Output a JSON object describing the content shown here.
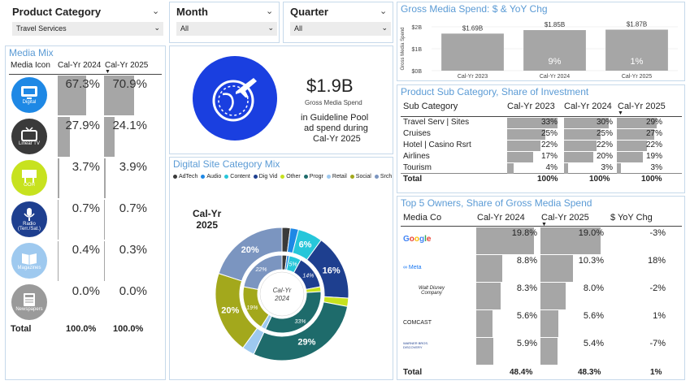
{
  "slicers": {
    "product_category": {
      "label": "Product Category",
      "value": "Travel Services"
    },
    "month": {
      "label": "Month",
      "value": "All"
    },
    "quarter": {
      "label": "Quarter",
      "value": "All"
    }
  },
  "media_mix": {
    "title": "Media Mix",
    "headers": {
      "icon": "Media Icon",
      "c1": "Cal-Yr 2024",
      "c2": "Cal-Yr 2025"
    },
    "rows": [
      {
        "name": "Digital",
        "icon": "monitor-icon",
        "v2024": "67.3%",
        "v2025": "70.9%",
        "n2024": 67.3,
        "n2025": 70.9,
        "color": "#1e88e5"
      },
      {
        "name": "Linear TV",
        "icon": "tv-icon",
        "v2024": "27.9%",
        "v2025": "24.1%",
        "n2024": 27.9,
        "n2025": 24.1,
        "color": "#3a3a3a"
      },
      {
        "name": "OOH",
        "icon": "billboard-icon",
        "v2024": "3.7%",
        "v2025": "3.9%",
        "n2024": 3.7,
        "n2025": 3.9,
        "color": "#c7e21f"
      },
      {
        "name": "Radio (Terr./Sat.)",
        "icon": "microphone-icon",
        "v2024": "0.7%",
        "v2025": "0.7%",
        "n2024": 0.7,
        "n2025": 0.7,
        "color": "#1e3f8f"
      },
      {
        "name": "Magazines",
        "icon": "book-icon",
        "v2024": "0.4%",
        "v2025": "0.3%",
        "n2024": 0.4,
        "n2025": 0.3,
        "color": "#9ec9ef"
      },
      {
        "name": "Newspapers",
        "icon": "newspaper-icon",
        "v2024": "0.0%",
        "v2025": "0.0%",
        "n2024": 0.0,
        "n2025": 0.0,
        "color": "#9a9a9a"
      }
    ],
    "total_label": "Total",
    "total_2024": "100.0%",
    "total_2025": "100.0%"
  },
  "kpi": {
    "value": "$1.9B",
    "sub": "Gross Media Spend",
    "line1": "in Guideline Pool",
    "line2": "ad spend during",
    "line3": "Cal-Yr 2025"
  },
  "digital_mix": {
    "title": "Digital Site Category Mix",
    "legend": [
      {
        "name": "AdTech",
        "color": "#3a3a3a"
      },
      {
        "name": "Audio",
        "color": "#1e88e5"
      },
      {
        "name": "Content",
        "color": "#26c6da"
      },
      {
        "name": "Dig Vid",
        "color": "#1e3f8f"
      },
      {
        "name": "Other",
        "color": "#c7e21f"
      },
      {
        "name": "Progr",
        "color": "#1e6b6b"
      },
      {
        "name": "Retail",
        "color": "#9ec9ef"
      },
      {
        "name": "Social",
        "color": "#a3a81c"
      },
      {
        "name": "Srch",
        "color": "#7b95c0"
      }
    ],
    "outer_label": "Cal-Yr",
    "outer_label2": "2025",
    "inner_label": "Cal-Yr",
    "inner_label2": "2024"
  },
  "chart_data": [
    {
      "type": "bar",
      "title": "Gross Media Spend: $ & YoY Chg",
      "categories": [
        "Cal-Yr 2023",
        "Cal-Yr 2024",
        "Cal-Yr 2025"
      ],
      "values": [
        1.69,
        1.85,
        1.87
      ],
      "value_labels": [
        "$1.69B",
        "$1.85B",
        "$1.87B"
      ],
      "yoy_labels": [
        "",
        "9%",
        "1%"
      ],
      "ylabel": "Gross Media Spend",
      "yticks": [
        "$0B",
        "$1B",
        "$2B"
      ],
      "ylim": [
        0,
        2
      ]
    },
    {
      "type": "pie",
      "title": "Digital Site Category Mix",
      "rings": [
        {
          "name": "Cal-Yr 2025",
          "slices": [
            {
              "name": "AdTech",
              "value": 2,
              "label": ""
            },
            {
              "name": "Audio",
              "value": 2,
              "label": ""
            },
            {
              "name": "Content",
              "value": 6,
              "label": "6%"
            },
            {
              "name": "Dig Vid",
              "value": 16,
              "label": "16%"
            },
            {
              "name": "Other",
              "value": 2,
              "label": ""
            },
            {
              "name": "Progr",
              "value": 29,
              "label": "29%"
            },
            {
              "name": "Retail",
              "value": 3,
              "label": ""
            },
            {
              "name": "Social",
              "value": 20,
              "label": "20%"
            },
            {
              "name": "Srch",
              "value": 20,
              "label": "20%"
            }
          ]
        },
        {
          "name": "Cal-Yr 2024",
          "slices": [
            {
              "name": "AdTech",
              "value": 2,
              "label": ""
            },
            {
              "name": "Audio",
              "value": 1,
              "label": ""
            },
            {
              "name": "Content",
              "value": 5,
              "label": "5%"
            },
            {
              "name": "Dig Vid",
              "value": 14,
              "label": "14%"
            },
            {
              "name": "Other",
              "value": 2,
              "label": ""
            },
            {
              "name": "Progr",
              "value": 33,
              "label": "33%"
            },
            {
              "name": "Retail",
              "value": 2,
              "label": ""
            },
            {
              "name": "Social",
              "value": 19,
              "label": "19%"
            },
            {
              "name": "Srch",
              "value": 22,
              "label": "22%"
            }
          ]
        }
      ]
    }
  ],
  "sub_category": {
    "title": "Product Sub Category, Share of Investment",
    "headers": {
      "name": "Sub Category",
      "c1": "Cal-Yr 2023",
      "c2": "Cal-Yr 2024",
      "c3": "Cal-Yr 2025"
    },
    "rows": [
      {
        "name": "Travel Serv | Sites",
        "v": [
          "33%",
          "30%",
          "29%"
        ],
        "n": [
          33,
          30,
          29
        ]
      },
      {
        "name": "Cruises",
        "v": [
          "25%",
          "25%",
          "27%"
        ],
        "n": [
          25,
          25,
          27
        ]
      },
      {
        "name": "Hotel | Casino Rsrt",
        "v": [
          "22%",
          "22%",
          "22%"
        ],
        "n": [
          22,
          22,
          22
        ]
      },
      {
        "name": "Airlines",
        "v": [
          "17%",
          "20%",
          "19%"
        ],
        "n": [
          17,
          20,
          19
        ]
      },
      {
        "name": "Tourism",
        "v": [
          "4%",
          "3%",
          "3%"
        ],
        "n": [
          4,
          3,
          3
        ]
      }
    ],
    "total_label": "Total",
    "totals": [
      "100%",
      "100%",
      "100%"
    ]
  },
  "owners": {
    "title": "Top 5 Owners, Share of Gross Media Spend",
    "headers": {
      "name": "Media Co",
      "c1": "Cal-Yr 2024",
      "c2": "Cal-Yr 2025",
      "c3": "$ YoY Chg"
    },
    "rows": [
      {
        "logo": "Google",
        "v2024": "19.8%",
        "v2025": "19.0%",
        "n2024": 19.8,
        "n2025": 19.0,
        "yoy": "-3%"
      },
      {
        "logo": "Meta",
        "v2024": "8.8%",
        "v2025": "10.3%",
        "n2024": 8.8,
        "n2025": 10.3,
        "yoy": "18%"
      },
      {
        "logo": "Walt Disney Company",
        "v2024": "8.3%",
        "v2025": "8.0%",
        "n2024": 8.3,
        "n2025": 8.0,
        "yoy": "-2%"
      },
      {
        "logo": "COMCAST",
        "v2024": "5.6%",
        "v2025": "5.6%",
        "n2024": 5.6,
        "n2025": 5.6,
        "yoy": "1%"
      },
      {
        "logo": "WARNER BROS. DISCOVERY",
        "v2024": "5.9%",
        "v2025": "5.4%",
        "n2024": 5.9,
        "n2025": 5.4,
        "yoy": "-7%"
      }
    ],
    "total_label": "Total",
    "total_2024": "48.4%",
    "total_2025": "48.3%",
    "total_yoy": "1%"
  }
}
